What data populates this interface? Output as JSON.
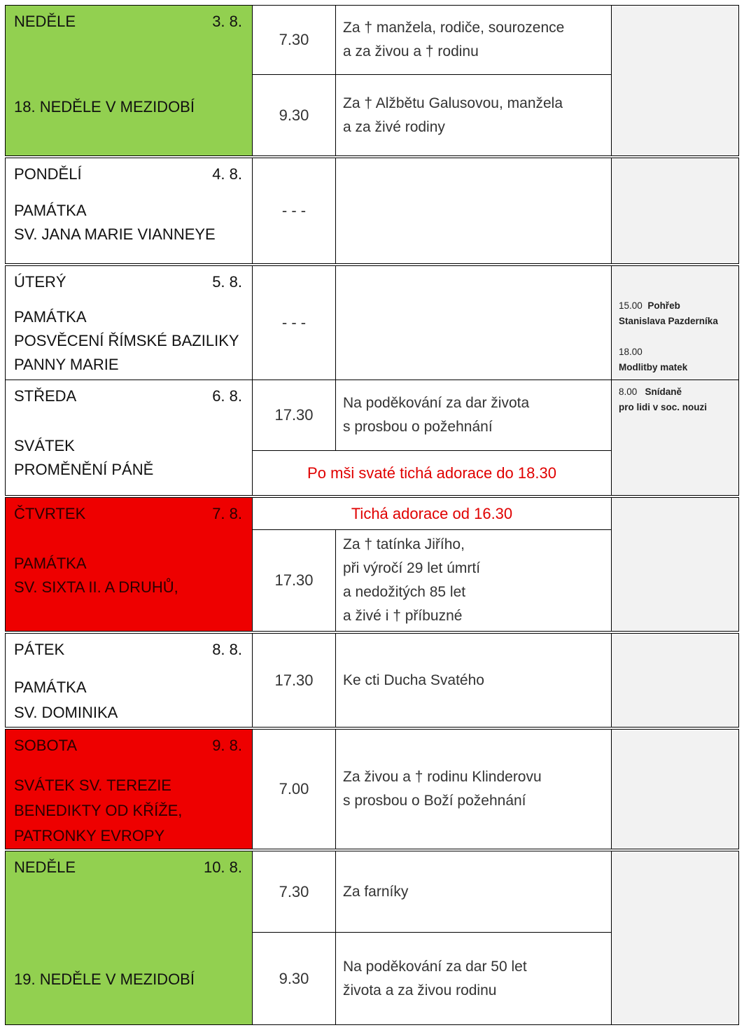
{
  "colors": {
    "sunday": "#92d050",
    "feast": "#ee0000",
    "notes": "#f2f2f2",
    "announcement": "#e00000"
  },
  "days": [
    {
      "name": "NEDĚLE",
      "date": "3. 8.",
      "title": [
        "18. NEDĚLE V MEZIDOBÍ"
      ],
      "masses": [
        {
          "time": "7.30",
          "intention": [
            "Za † manžela, rodiče, sourozence",
            "a za živou a † rodinu"
          ]
        },
        {
          "time": "9.30",
          "intention": [
            "Za † Alžbětu Galusovou, manžela",
            "a za živé rodiny"
          ]
        }
      ]
    },
    {
      "name": "PONDĚLÍ",
      "date": "4. 8.",
      "title": [
        "PAMÁTKA",
        "SV. JANA MARIE VIANNEYE"
      ],
      "masses": [
        {
          "time": "- - -"
        }
      ]
    },
    {
      "name": "ÚTERÝ",
      "date": "5. 8.",
      "title": [
        "PAMÁTKA",
        "POSVĚCENÍ ŘÍMSKÉ BAZILIKY",
        "PANNY MARIE"
      ],
      "masses": [
        {
          "time": "- - -"
        }
      ],
      "notes": [
        {
          "time": "15.00",
          "text": "Pohřeb",
          "text2": "Stanislava Pazderníka"
        },
        {
          "time": "18.00",
          "text": "Modlitby matek"
        }
      ]
    },
    {
      "name": "STŘEDA",
      "date": "6. 8.",
      "title": [
        "SVÁTEK",
        "PROMĚNĚNÍ PÁNĚ"
      ],
      "masses": [
        {
          "time": "17.30",
          "intention": [
            "Na poděkování za dar života",
            "s prosbou o požehnání"
          ]
        }
      ],
      "announcement": "Po mši svaté tichá adorace do 18.30",
      "notes": [
        {
          "time": "8.00",
          "text": "Snídaně",
          "text2": "pro lidi v soc. nouzi"
        }
      ]
    },
    {
      "name": "ČTVRTEK",
      "date": "7. 8.",
      "title": [
        "PAMÁTKA",
        "SV. SIXTA II. A DRUHŮ,"
      ],
      "announcement": "Tichá adorace od 16.30",
      "masses": [
        {
          "time": "17.30",
          "intention": [
            "Za † tatínka Jiřího,",
            "při výročí 29 let úmrtí",
            "a nedožitých 85 let",
            "a živé i † příbuzné"
          ]
        }
      ]
    },
    {
      "name": "PÁTEK",
      "date": "8. 8.",
      "title": [
        "PAMÁTKA",
        "SV. DOMINIKA"
      ],
      "masses": [
        {
          "time": "17.30",
          "intention": [
            "Ke cti Ducha Svatého"
          ]
        }
      ]
    },
    {
      "name": "SOBOTA",
      "date": "9. 8.",
      "title": [
        "SVÁTEK SV. TEREZIE",
        "BENEDIKTY OD KŘÍŽE,",
        "PATRONKY EVROPY"
      ],
      "masses": [
        {
          "time": "7.00",
          "intention": [
            "Za živou a † rodinu Klinderovu",
            "s prosbou o Boží požehnání"
          ]
        }
      ]
    },
    {
      "name": "NEDĚLE",
      "date": "10. 8.",
      "title": [
        "19. NEDĚLE V MEZIDOBÍ"
      ],
      "masses": [
        {
          "time": "7.30",
          "intention": [
            "Za farníky"
          ]
        },
        {
          "time": "9.30",
          "intention": [
            "Na poděkování za dar 50 let",
            "života a za živou rodinu"
          ]
        }
      ]
    }
  ]
}
